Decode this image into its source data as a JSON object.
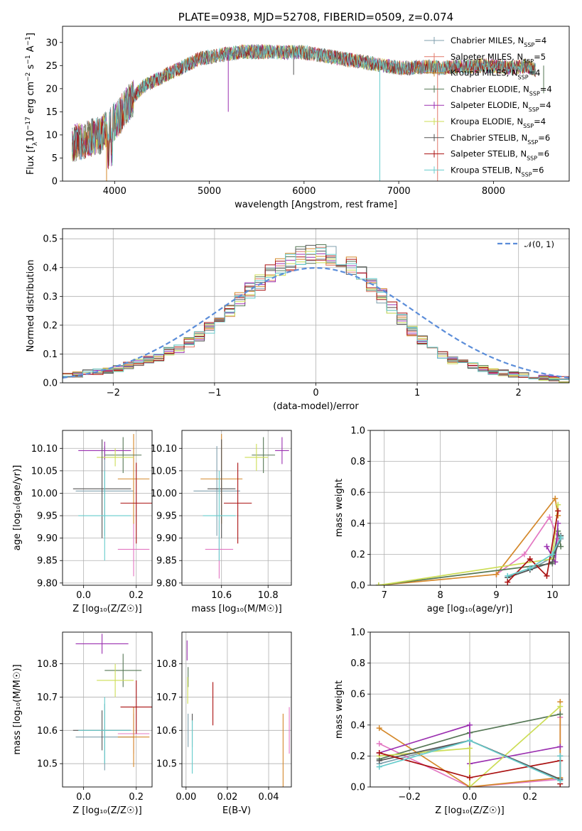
{
  "chart_data": [
    {
      "id": "spectrum",
      "type": "line",
      "title": "PLATE=0938, MJD=52708, FIBERID=0509, z=0.074",
      "xlabel": "wavelength [Angstrom, rest frame]",
      "ylabel_parts": [
        "Flux [f",
        "λ",
        "10",
        "−17",
        " erg cm",
        "−2",
        " s",
        "−1",
        " A",
        "−1",
        "]"
      ],
      "xlim": [
        3450,
        8800
      ],
      "ylim": [
        0,
        33.5
      ],
      "xticks": [
        4000,
        5000,
        6000,
        7000,
        8000
      ],
      "xtick_labels": [
        "4000",
        "5000",
        "6000",
        "7000",
        "8000"
      ],
      "yticks": [
        0,
        5,
        10,
        15,
        20,
        25,
        30
      ],
      "ytick_labels": [
        "0",
        "5",
        "10",
        "15",
        "20",
        "25",
        "30"
      ],
      "grid": false,
      "legend_position": "top-right",
      "continuum": {
        "x": [
          3550,
          3700,
          3850,
          3950,
          4050,
          4150,
          4300,
          4450,
          4600,
          4750,
          4900,
          5050,
          5200,
          5350,
          5500,
          5650,
          5800,
          5950,
          6100,
          6250,
          6400,
          6550,
          6700,
          6850,
          7000,
          7150,
          7300,
          7450,
          7600,
          7750,
          7900,
          8050,
          8200,
          8350,
          8450
        ],
        "y": [
          8,
          9,
          10,
          12,
          14,
          17,
          20.5,
          22,
          23.5,
          25,
          26.5,
          27,
          27.5,
          28,
          28,
          28,
          27.8,
          28,
          27.5,
          27,
          26.5,
          26,
          25.5,
          25,
          24.5,
          24.5,
          24.8,
          24.5,
          24.8,
          24.8,
          25,
          24.8,
          24.5,
          25,
          24
        ]
      },
      "sharp_lines": [
        {
          "x": 3915,
          "y": 0
        },
        {
          "x": 5200,
          "y": 15
        },
        {
          "x": 5890,
          "y": 23
        },
        {
          "x": 6800,
          "y": 0
        },
        {
          "x": 7410,
          "y": 0
        },
        {
          "x": 8530,
          "y": 19
        }
      ],
      "series": [
        {
          "name": "Chabrier MILES",
          "nssp": "4",
          "color": "#7f9fad"
        },
        {
          "name": "Salpeter MILES",
          "nssp": "5",
          "color": "#e0796a"
        },
        {
          "name": "Kroupa MILES",
          "nssp": "4",
          "color": "#d4882a"
        },
        {
          "name": "Chabrier ELODIE",
          "nssp": "4",
          "color": "#557755"
        },
        {
          "name": "Salpeter ELODIE",
          "nssp": "4",
          "color": "#9b30b0"
        },
        {
          "name": "Kroupa ELODIE",
          "nssp": "4",
          "color": "#ccdd55"
        },
        {
          "name": "Chabrier STELIB",
          "nssp": "6",
          "color": "#555555"
        },
        {
          "name": "Salpeter STELIB",
          "nssp": "6",
          "color": "#aa1111"
        },
        {
          "name": "Kroupa STELIB",
          "nssp": "6",
          "color": "#66cccc"
        }
      ],
      "nssp_prefix": "N",
      "nssp_sub": "SSP"
    },
    {
      "id": "residuals",
      "type": "histogram",
      "xlabel": "(data-model)/error",
      "ylabel": "Normed distribution",
      "xlim": [
        -2.5,
        2.5
      ],
      "ylim": [
        0,
        0.535
      ],
      "xticks": [
        -2,
        -1,
        0,
        1,
        2
      ],
      "xtick_labels": [
        "−2",
        "−1",
        "0",
        "1",
        "2"
      ],
      "yticks": [
        0,
        0.1,
        0.2,
        0.3,
        0.4,
        0.5
      ],
      "ytick_labels": [
        "0.0",
        "0.1",
        "0.2",
        "0.3",
        "0.4",
        "0.5"
      ],
      "grid": true,
      "legend_position": "top-right",
      "gauss_label": "𝒩(0, 1)",
      "gauss_color": "#5b8dd9",
      "bin_width": 0.1,
      "bin_start": -2.5,
      "base": [
        0.025,
        0.03,
        0.035,
        0.04,
        0.04,
        0.05,
        0.06,
        0.07,
        0.08,
        0.09,
        0.11,
        0.12,
        0.14,
        0.16,
        0.19,
        0.21,
        0.25,
        0.29,
        0.32,
        0.35,
        0.38,
        0.4,
        0.42,
        0.44,
        0.45,
        0.45,
        0.44,
        0.43,
        0.41,
        0.38,
        0.34,
        0.3,
        0.26,
        0.22,
        0.18,
        0.15,
        0.12,
        0.1,
        0.08,
        0.07,
        0.06,
        0.05,
        0.04,
        0.035,
        0.03,
        0.025,
        0.02,
        0.018,
        0.015,
        0.012
      ]
    },
    {
      "id": "age-vs-Z",
      "type": "errorbar",
      "xlabel": "Z [log₁₀(Z/Z☉)]",
      "ylabel": "age  [log₁₀(age/yr)]",
      "xlim": [
        -0.08,
        0.26
      ],
      "ylim": [
        9.795,
        10.14
      ],
      "xticks": [
        0.0,
        0.2
      ],
      "xtick_labels": [
        "0.0",
        "0.2"
      ],
      "yticks": [
        9.8,
        9.85,
        9.9,
        9.95,
        10.0,
        10.05,
        10.1
      ],
      "ytick_labels": [
        "9.80",
        "9.85",
        "9.90",
        "9.95",
        "10.00",
        "10.05",
        "10.10"
      ],
      "grid": true,
      "points": [
        {
          "x": 0.08,
          "y": 10.005,
          "xerr": 0.11,
          "yerr": 0.1,
          "color": "#7f9fad"
        },
        {
          "x": 0.19,
          "y": 9.875,
          "xerr": 0.06,
          "yerr": 0.06,
          "color": "#e377c2"
        },
        {
          "x": 0.19,
          "y": 10.032,
          "xerr": 0.06,
          "yerr": 0.1,
          "color": "#d4882a"
        },
        {
          "x": 0.15,
          "y": 10.085,
          "xerr": 0.07,
          "yerr": 0.04,
          "color": "#557755"
        },
        {
          "x": 0.08,
          "y": 10.095,
          "xerr": 0.1,
          "yerr": 0.02,
          "color": "#9b30b0"
        },
        {
          "x": 0.12,
          "y": 10.08,
          "xerr": 0.07,
          "yerr": 0.02,
          "color": "#ccdd55"
        },
        {
          "x": 0.07,
          "y": 10.01,
          "xerr": 0.11,
          "yerr": 0.11,
          "color": "#555555"
        },
        {
          "x": 0.2,
          "y": 9.978,
          "xerr": 0.06,
          "yerr": 0.09,
          "color": "#aa1111"
        },
        {
          "x": 0.08,
          "y": 9.95,
          "xerr": 0.1,
          "yerr": 0.1,
          "color": "#66cccc"
        }
      ]
    },
    {
      "id": "age-vs-mass",
      "type": "errorbar",
      "xlabel": "mass [log₁₀(M/M☉)]",
      "ylabel": "",
      "xlim": [
        10.43,
        10.9
      ],
      "ylim": [
        9.795,
        10.14
      ],
      "xticks": [
        10.6,
        10.8
      ],
      "xtick_labels": [
        "10.6",
        "10.8"
      ],
      "yticks": [
        9.8,
        9.85,
        9.9,
        9.95,
        10.0,
        10.05,
        10.1
      ],
      "ytick_labels": [
        "9.80",
        "9.85",
        "9.90",
        "9.95",
        "10.00",
        "10.05",
        "10.10"
      ],
      "grid": true,
      "points": [
        {
          "x": 10.58,
          "y": 10.005,
          "xerr": 0.1,
          "yerr": 0.1,
          "color": "#7f9fad"
        },
        {
          "x": 10.59,
          "y": 9.875,
          "xerr": 0.06,
          "yerr": 0.065,
          "color": "#e377c2"
        },
        {
          "x": 10.6,
          "y": 10.032,
          "xerr": 0.09,
          "yerr": 0.1,
          "color": "#d4882a"
        },
        {
          "x": 10.78,
          "y": 10.085,
          "xerr": 0.05,
          "yerr": 0.04,
          "color": "#557755"
        },
        {
          "x": 10.86,
          "y": 10.095,
          "xerr": 0.03,
          "yerr": 0.03,
          "color": "#9b30b0"
        },
        {
          "x": 10.75,
          "y": 10.08,
          "xerr": 0.05,
          "yerr": 0.03,
          "color": "#ccdd55"
        },
        {
          "x": 10.6,
          "y": 10.01,
          "xerr": 0.06,
          "yerr": 0.11,
          "color": "#555555"
        },
        {
          "x": 10.67,
          "y": 9.978,
          "xerr": 0.06,
          "yerr": 0.09,
          "color": "#aa1111"
        },
        {
          "x": 10.59,
          "y": 9.95,
          "xerr": 0.07,
          "yerr": 0.1,
          "color": "#66cccc"
        }
      ]
    },
    {
      "id": "weight-vs-age",
      "type": "line",
      "xlabel": "age  [log₁₀(age/yr)]",
      "ylabel": "mass weight",
      "xlim": [
        6.75,
        10.3
      ],
      "ylim": [
        0,
        1
      ],
      "xticks": [
        7,
        8,
        9,
        10
      ],
      "xtick_labels": [
        "7",
        "8",
        "9",
        "10"
      ],
      "yticks": [
        0,
        0.2,
        0.4,
        0.6,
        0.8,
        1.0
      ],
      "ytick_labels": [
        "0.0",
        "0.2",
        "0.4",
        "0.6",
        "0.8",
        "1.0"
      ],
      "grid": true,
      "series": [
        {
          "color": "#7f9fad",
          "x": [
            9.2,
            9.6,
            10.0,
            10.15
          ],
          "y": [
            0.05,
            0.1,
            0.18,
            0.3
          ]
        },
        {
          "color": "#e377c2",
          "x": [
            9.0,
            9.5,
            9.95,
            10.1
          ],
          "y": [
            0.07,
            0.2,
            0.44,
            0.3
          ]
        },
        {
          "color": "#d4882a",
          "x": [
            6.9,
            9.0,
            10.05,
            10.1
          ],
          "y": [
            0.0,
            0.07,
            0.56,
            0.45
          ]
        },
        {
          "color": "#557755",
          "x": [
            6.9,
            10.0,
            10.1,
            10.15
          ],
          "y": [
            0.0,
            0.14,
            0.35,
            0.25
          ]
        },
        {
          "color": "#9b30b0",
          "x": [
            9.9,
            10.05,
            10.1
          ],
          "y": [
            0.25,
            0.15,
            0.4
          ]
        },
        {
          "color": "#ccdd55",
          "x": [
            6.9,
            10.0,
            10.1
          ],
          "y": [
            0.0,
            0.17,
            0.52
          ]
        },
        {
          "color": "#555555",
          "x": [
            9.2,
            9.6,
            10.0,
            10.15
          ],
          "y": [
            0.05,
            0.1,
            0.15,
            0.32
          ]
        },
        {
          "color": "#aa1111",
          "x": [
            9.2,
            9.6,
            9.9,
            10.1
          ],
          "y": [
            0.02,
            0.17,
            0.06,
            0.48
          ]
        },
        {
          "color": "#66cccc",
          "x": [
            9.2,
            9.6,
            10.0,
            10.15
          ],
          "y": [
            0.06,
            0.11,
            0.2,
            0.31
          ]
        }
      ]
    },
    {
      "id": "mass-vs-Z",
      "type": "errorbar",
      "xlabel": "Z [log₁₀(Z/Z☉)]",
      "ylabel": "mass [log₁₀(M/M☉)]",
      "xlim": [
        -0.08,
        0.26
      ],
      "ylim": [
        10.43,
        10.895
      ],
      "xticks": [
        0.0,
        0.2
      ],
      "xtick_labels": [
        "0.0",
        "0.2"
      ],
      "yticks": [
        10.5,
        10.6,
        10.7,
        10.8
      ],
      "ytick_labels": [
        "10.5",
        "10.6",
        "10.7",
        "10.8"
      ],
      "grid": true,
      "points": [
        {
          "x": 0.08,
          "y": 10.58,
          "xerr": 0.11,
          "yerr": 0.1,
          "color": "#7f9fad"
        },
        {
          "x": 0.19,
          "y": 10.59,
          "xerr": 0.06,
          "yerr": 0.06,
          "color": "#e377c2"
        },
        {
          "x": 0.19,
          "y": 10.58,
          "xerr": 0.06,
          "yerr": 0.09,
          "color": "#d4882a"
        },
        {
          "x": 0.15,
          "y": 10.78,
          "xerr": 0.07,
          "yerr": 0.05,
          "color": "#557755"
        },
        {
          "x": 0.07,
          "y": 10.86,
          "xerr": 0.1,
          "yerr": 0.03,
          "color": "#9b30b0"
        },
        {
          "x": 0.12,
          "y": 10.75,
          "xerr": 0.07,
          "yerr": 0.05,
          "color": "#ccdd55"
        },
        {
          "x": 0.07,
          "y": 10.6,
          "xerr": 0.11,
          "yerr": 0.06,
          "color": "#555555"
        },
        {
          "x": 0.2,
          "y": 10.67,
          "xerr": 0.06,
          "yerr": 0.08,
          "color": "#aa1111"
        },
        {
          "x": 0.08,
          "y": 10.6,
          "xerr": 0.1,
          "yerr": 0.1,
          "color": "#66cccc"
        }
      ]
    },
    {
      "id": "mass-vs-ebv",
      "type": "errorbar",
      "xlabel": "E(B-V)",
      "ylabel": "",
      "xlim": [
        -0.002,
        0.051
      ],
      "ylim": [
        10.43,
        10.895
      ],
      "xticks": [
        0.0,
        0.02,
        0.04
      ],
      "xtick_labels": [
        "0.00",
        "0.02",
        "0.04"
      ],
      "yticks": [
        10.5,
        10.6,
        10.7,
        10.8
      ],
      "ytick_labels": [
        "10.5",
        "10.6",
        "10.7",
        "10.8"
      ],
      "grid": true,
      "points": [
        {
          "x": 0.001,
          "y": 10.6,
          "xerr": 0.0,
          "yerr": 0.05,
          "color": "#7f9fad"
        },
        {
          "x": 0.05,
          "y": 10.6,
          "xerr": 0.0,
          "yerr": 0.07,
          "color": "#e377c2"
        },
        {
          "x": 0.047,
          "y": 10.5,
          "xerr": 0.0,
          "yerr": 0.15,
          "color": "#d4882a"
        },
        {
          "x": 0.001,
          "y": 10.76,
          "xerr": 0.0,
          "yerr": 0.03,
          "color": "#557755"
        },
        {
          "x": 0.0005,
          "y": 10.84,
          "xerr": 0.0,
          "yerr": 0.03,
          "color": "#9b30b0"
        },
        {
          "x": 0.0008,
          "y": 10.72,
          "xerr": 0.0,
          "yerr": 0.04,
          "color": "#ccdd55"
        },
        {
          "x": 0.003,
          "y": 10.6,
          "xerr": 0.0,
          "yerr": 0.05,
          "color": "#555555"
        },
        {
          "x": 0.013,
          "y": 10.68,
          "xerr": 0.0,
          "yerr": 0.065,
          "color": "#aa1111"
        },
        {
          "x": 0.003,
          "y": 10.55,
          "xerr": 0.0,
          "yerr": 0.08,
          "color": "#66cccc"
        }
      ]
    },
    {
      "id": "weight-vs-Z",
      "type": "line",
      "xlabel": "Z [log₁₀(Z/Z☉)]",
      "ylabel": "mass weight",
      "xlim": [
        -0.33,
        0.33
      ],
      "ylim": [
        0,
        1
      ],
      "xticks": [
        -0.2,
        0.0,
        0.2
      ],
      "xtick_labels": [
        "−0.2",
        "0.0",
        "0.2"
      ],
      "yticks": [
        0,
        0.2,
        0.4,
        0.6,
        0.8,
        1.0
      ],
      "ytick_labels": [
        "0.0",
        "0.2",
        "0.4",
        "0.6",
        "0.8",
        "1.0"
      ],
      "grid": true,
      "series": [
        {
          "color": "#7f9fad",
          "x": [
            -0.3,
            0.0,
            0.3,
            0.3
          ],
          "y": [
            0.15,
            0.3,
            0.05,
            0.2
          ]
        },
        {
          "color": "#e377c2",
          "x": [
            -0.3,
            0.0,
            0.3,
            0.3
          ],
          "y": [
            0.28,
            0.0,
            0.05,
            0.45
          ]
        },
        {
          "color": "#d4882a",
          "x": [
            -0.3,
            0.0,
            0.3,
            0.3
          ],
          "y": [
            0.38,
            0.0,
            0.06,
            0.55
          ]
        },
        {
          "color": "#557755",
          "x": [
            -0.3,
            0.0,
            0.3
          ],
          "y": [
            0.18,
            0.35,
            0.47
          ]
        },
        {
          "color": "#9b30b0",
          "x": [
            -0.3,
            0.0,
            0.0,
            0.3
          ],
          "y": [
            0.22,
            0.4,
            0.15,
            0.26
          ]
        },
        {
          "color": "#ccdd55",
          "x": [
            -0.3,
            0.0,
            0.0,
            0.3
          ],
          "y": [
            0.2,
            0.25,
            0.0,
            0.52
          ]
        },
        {
          "color": "#555555",
          "x": [
            -0.3,
            0.0,
            0.3
          ],
          "y": [
            0.17,
            0.3,
            0.05
          ]
        },
        {
          "color": "#aa1111",
          "x": [
            -0.3,
            0.0,
            0.3,
            0.3
          ],
          "y": [
            0.22,
            0.06,
            0.17,
            0.02
          ]
        },
        {
          "color": "#66cccc",
          "x": [
            -0.3,
            0.0,
            0.3,
            0.3
          ],
          "y": [
            0.13,
            0.3,
            0.04,
            0.2
          ]
        }
      ]
    }
  ]
}
